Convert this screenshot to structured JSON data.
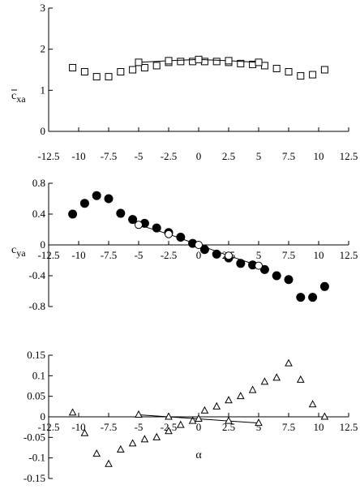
{
  "chart_data": [
    {
      "id": "cxa",
      "type": "scatter",
      "ylabel": "c̄xa",
      "ylabel_main": "c",
      "ylabel_sub": "xa",
      "xlim": [
        -12.5,
        12.5
      ],
      "ylim": [
        0,
        3
      ],
      "xticks": [
        -12.5,
        -10,
        -7.5,
        -5,
        -2.5,
        0,
        2.5,
        5,
        7.5,
        10,
        12.5
      ],
      "xtick_labels": [
        "-12.5",
        "-10",
        "-7.5",
        "-5",
        "-2.5",
        "0",
        "2.5",
        "5",
        "7.5",
        "10",
        "12.5"
      ],
      "yticks": [
        0,
        1,
        2,
        3
      ],
      "ytick_labels": [
        "0",
        "1",
        "2",
        "3"
      ],
      "series": [
        {
          "marker": "square-open",
          "x": [
            -10.5,
            -9.5,
            -8.5,
            -7.5,
            -6.5,
            -5.5,
            -4.5,
            -3.5,
            -2.5,
            -1.5,
            -0.5,
            0.5,
            1.5,
            2.5,
            3.5,
            4.5,
            5.5,
            6.5,
            7.5,
            8.5,
            9.5,
            10.5
          ],
          "y": [
            1.55,
            1.45,
            1.33,
            1.33,
            1.45,
            1.5,
            1.55,
            1.6,
            1.68,
            1.7,
            1.7,
            1.7,
            1.7,
            1.68,
            1.65,
            1.63,
            1.6,
            1.53,
            1.45,
            1.35,
            1.38,
            1.5
          ]
        },
        {
          "marker": "square-open",
          "line": true,
          "x": [
            -5,
            -2.5,
            0,
            2.5,
            5
          ],
          "y": [
            1.68,
            1.72,
            1.75,
            1.72,
            1.68
          ]
        }
      ]
    },
    {
      "id": "cya",
      "type": "scatter",
      "ylabel": "cya",
      "ylabel_main": "c",
      "ylabel_sub": "ya",
      "xlim": [
        -12.5,
        12.5
      ],
      "ylim": [
        -0.8,
        0.8
      ],
      "xticks": [
        -12.5,
        -10,
        -7.5,
        -5,
        -2.5,
        0,
        2.5,
        5,
        7.5,
        10,
        12.5
      ],
      "xtick_labels": [
        "-12.5",
        "-10",
        "-7.5",
        "-5",
        "-2.5",
        "0",
        "2.5",
        "5",
        "7.5",
        "10",
        "12.5"
      ],
      "yticks": [
        -0.8,
        -0.4,
        0,
        0.4,
        0.8
      ],
      "ytick_labels": [
        "-0.8",
        "-0.4",
        "0",
        "0.4",
        "0.8"
      ],
      "series": [
        {
          "marker": "circle-filled",
          "x": [
            -10.5,
            -9.5,
            -8.5,
            -7.5,
            -6.5,
            -5.5,
            -4.5,
            -3.5,
            -2.5,
            -1.5,
            -0.5,
            0.5,
            1.5,
            2.5,
            3.5,
            4.5,
            5.5,
            6.5,
            7.5,
            8.5,
            9.5,
            10.5
          ],
          "y": [
            0.4,
            0.54,
            0.64,
            0.6,
            0.41,
            0.33,
            0.28,
            0.22,
            0.16,
            0.1,
            0.02,
            -0.06,
            -0.12,
            -0.17,
            -0.24,
            -0.26,
            -0.32,
            -0.4,
            -0.45,
            -0.68,
            -0.68,
            -0.54
          ]
        },
        {
          "marker": "circle-open",
          "line": true,
          "x": [
            -5,
            -2.5,
            0,
            2.5,
            5
          ],
          "y": [
            0.26,
            0.14,
            0.0,
            -0.14,
            -0.27
          ]
        }
      ]
    },
    {
      "id": "cza",
      "type": "scatter",
      "xlabel": "α",
      "xlim": [
        -12.5,
        12.5
      ],
      "ylim": [
        -0.15,
        0.15
      ],
      "xticks": [
        -12.5,
        -10,
        -7.5,
        -5,
        -2.5,
        0,
        2.5,
        5,
        7.5,
        10,
        12.5
      ],
      "xtick_labels": [
        "-12.5",
        "-10",
        "-7.5",
        "-5",
        "-2.5",
        "0",
        "2.5",
        "5",
        "7.5",
        "10",
        "12.5"
      ],
      "yticks": [
        -0.15,
        -0.1,
        -0.05,
        0,
        0.05,
        0.1,
        0.15
      ],
      "ytick_labels": [
        "-0.15",
        "-0.1",
        "-0.05",
        "0",
        "0.05",
        "0.1",
        "0.15"
      ],
      "series": [
        {
          "marker": "triangle-open",
          "x": [
            -10.5,
            -9.5,
            -8.5,
            -7.5,
            -6.5,
            -5.5,
            -4.5,
            -3.5,
            -2.5,
            -1.5,
            -0.5,
            0.5,
            1.5,
            2.5,
            3.5,
            4.5,
            5.5,
            6.5,
            7.5,
            8.5,
            9.5,
            10.5
          ],
          "y": [
            0.01,
            -0.04,
            -0.09,
            -0.115,
            -0.08,
            -0.065,
            -0.055,
            -0.05,
            -0.035,
            -0.02,
            -0.01,
            0.015,
            0.025,
            0.04,
            0.05,
            0.065,
            0.085,
            0.095,
            0.13,
            0.09,
            0.03,
            0.0
          ]
        },
        {
          "marker": "triangle-open",
          "line": true,
          "x": [
            -5,
            -2.5,
            0,
            2.5,
            5
          ],
          "y": [
            0.005,
            0.0,
            -0.005,
            -0.01,
            -0.015
          ]
        }
      ]
    }
  ]
}
